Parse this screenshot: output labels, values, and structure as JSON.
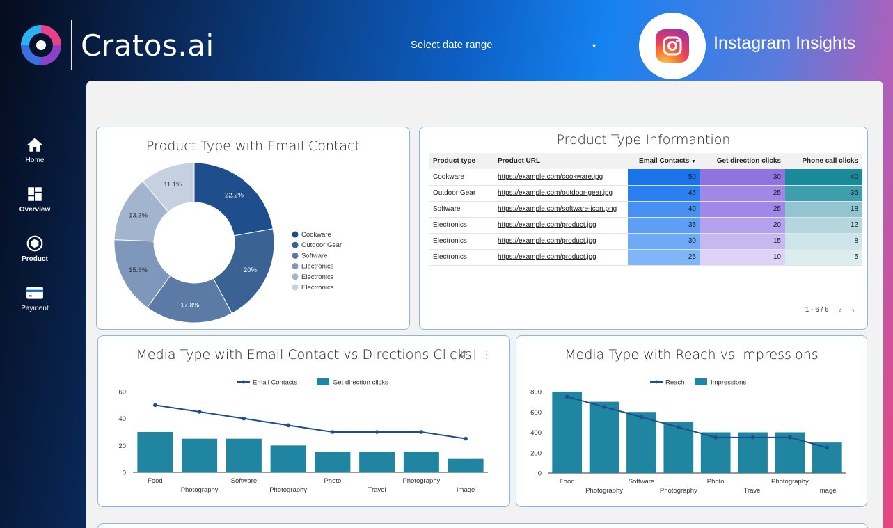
{
  "header": {
    "brand": "Cratos.ai",
    "date_select_label": "Select date range",
    "insta_title": "Instagram Insights"
  },
  "sidebar": {
    "items": [
      {
        "label": "Home",
        "icon": "home-icon"
      },
      {
        "label": "Overview",
        "icon": "dashboard-icon"
      },
      {
        "label": "Product",
        "icon": "product-icon"
      },
      {
        "label": "Payment",
        "icon": "card-icon"
      }
    ]
  },
  "donut_card": {
    "title": "Product Type with Email Contact"
  },
  "table_card": {
    "title": "Product Type Informantion",
    "headers": [
      "Product type",
      "Product URL",
      "Email Contacts",
      "Get direction clicks",
      "Phone call clicks"
    ],
    "rows": [
      {
        "type": "Cookware",
        "url": "https://example.com/cookware.jpg",
        "email": "50",
        "directions": "30",
        "phone": "40"
      },
      {
        "type": "Outdoor Gear",
        "url": "https://example.com/outdoor-gear.jpg",
        "email": "45",
        "directions": "25",
        "phone": "35"
      },
      {
        "type": "Software",
        "url": "https://example.com/software-icon.png",
        "email": "40",
        "directions": "25",
        "phone": "18"
      },
      {
        "type": "Electronics",
        "url": "https://example.com/product.jpg",
        "email": "35",
        "directions": "20",
        "phone": "12"
      },
      {
        "type": "Electronics",
        "url": "https://example.com/product.jpg",
        "email": "30",
        "directions": "15",
        "phone": "8"
      },
      {
        "type": "Electronics",
        "url": "https://example.com/product.jpg",
        "email": "25",
        "directions": "10",
        "phone": "5"
      }
    ],
    "pager": "1 - 6 / 6",
    "email_colors": [
      "#1a73e8",
      "#2b7ff0",
      "#4890f2",
      "#5e9ef4",
      "#6eaaf6",
      "#80b6f8"
    ],
    "dir_colors": [
      "#8f74e0",
      "#a088e6",
      "#a088e6",
      "#b4a0ec",
      "#c8b8f2",
      "#ddd3f8"
    ],
    "phone_colors": [
      "#1a8a99",
      "#3f9eab",
      "#92c5d0",
      "#b4d7de",
      "#cde5ea",
      "#dcedf0"
    ]
  },
  "combo1_card": {
    "title": "Media Type with Email Contact vs Directions Clicks"
  },
  "combo2_card": {
    "title": "Media Type with Reach vs Impressions"
  },
  "chart_data": [
    {
      "type": "pie",
      "title": "Product Type with Email Contact",
      "categories": [
        "Cookware",
        "Outdoor Gear",
        "Software",
        "Electronics",
        "Electronics",
        "Electronics"
      ],
      "values": [
        22.2,
        20,
        17.8,
        15.6,
        13.3,
        11.1
      ],
      "labels": [
        "22.2%",
        "20%",
        "17.8%",
        "15.6%",
        "13.3%",
        "11.1%"
      ],
      "colors": [
        "#1f4e8c",
        "#3a6394",
        "#5b7ba6",
        "#7f97ba",
        "#a3b4ce",
        "#c5d0e0"
      ],
      "legend": "right"
    },
    {
      "type": "bar",
      "title": "Media Type with Email Contact vs Directions Clicks",
      "categories": [
        "Food",
        "Photography",
        "Software",
        "Photography",
        "Photo",
        "Travel",
        "Photography",
        "Image"
      ],
      "series": [
        {
          "name": "Email Contacts",
          "kind": "line",
          "values": [
            50,
            45,
            40,
            35,
            30,
            30,
            30,
            25
          ],
          "color": "#1f4e8c"
        },
        {
          "name": "Get direction clicks",
          "kind": "bar",
          "values": [
            30,
            25,
            25,
            20,
            15,
            15,
            15,
            10
          ],
          "color": "#1f85a1"
        }
      ],
      "yticks": [
        "0",
        "20",
        "40",
        "60"
      ],
      "ylim": [
        0,
        60
      ],
      "legend": "top"
    },
    {
      "type": "bar",
      "title": "Media Type with Reach vs Impressions",
      "categories": [
        "Food",
        "Photography",
        "Software",
        "Photography",
        "Photo",
        "Travel",
        "Photography",
        "Image"
      ],
      "series": [
        {
          "name": "Reach",
          "kind": "line",
          "values": [
            750,
            650,
            550,
            450,
            350,
            350,
            350,
            250
          ],
          "color": "#1f4e8c"
        },
        {
          "name": "Impressions",
          "kind": "bar",
          "values": [
            800,
            700,
            600,
            500,
            400,
            400,
            400,
            300
          ],
          "color": "#1f85a1"
        }
      ],
      "yticks": [
        "0",
        "200",
        "400",
        "600",
        "800"
      ],
      "ylim": [
        0,
        800
      ],
      "legend": "top"
    }
  ]
}
